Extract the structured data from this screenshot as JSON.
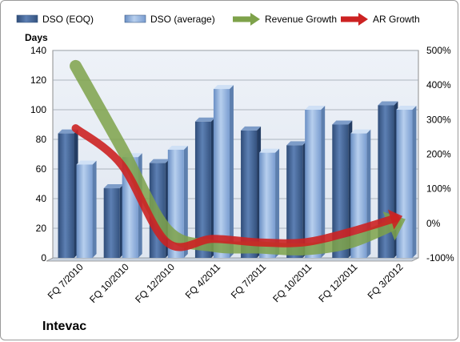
{
  "company": "Intevac",
  "chart_data": {
    "type": "bar",
    "categories": [
      "FQ 7/2010",
      "FQ 10/2010",
      "FQ 12/2010",
      "FQ 4/2011",
      "FQ 7/2011",
      "FQ 10/2011",
      "FQ 12/2011",
      "FQ 3/2012"
    ],
    "ylabel": "Days",
    "ylim": [
      0,
      140
    ],
    "yticks": [
      "0",
      "20",
      "40",
      "60",
      "80",
      "100",
      "120",
      "140"
    ],
    "y2lim": [
      -100,
      500
    ],
    "y2ticks": [
      "-100%",
      "0%",
      "100%",
      "200%",
      "300%",
      "400%",
      "500%"
    ],
    "y2tick_values": [
      -100,
      0,
      100,
      200,
      300,
      400,
      500
    ],
    "grid": true,
    "legend_position": "top",
    "series": [
      {
        "name": "DSO (EOQ)",
        "kind": "bar",
        "axis": "left",
        "color": "#4a6a9a",
        "values": [
          84,
          47,
          64,
          92,
          86,
          76,
          90,
          103
        ]
      },
      {
        "name": "DSO (average)",
        "kind": "bar",
        "axis": "left",
        "color": "#8fb0de",
        "values": [
          63,
          68,
          73,
          114,
          71,
          100,
          84,
          100
        ]
      },
      {
        "name": "Revenue Growth",
        "kind": "arrow",
        "axis": "right",
        "color": "#7ea24a",
        "values": [
          455,
          220,
          -20,
          -65,
          -70,
          -75,
          -55,
          0
        ]
      },
      {
        "name": "AR Growth",
        "kind": "arrow",
        "axis": "right",
        "color": "#cc2222",
        "values": [
          275,
          170,
          -55,
          -45,
          -55,
          -55,
          -25,
          15
        ]
      }
    ]
  }
}
